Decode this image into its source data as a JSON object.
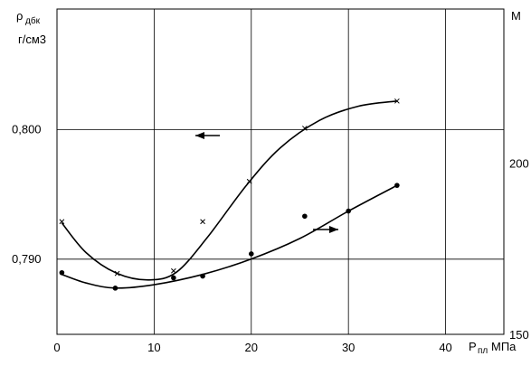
{
  "chart_data": {
    "type": "line",
    "title": "",
    "x_axis": {
      "label_main": "P",
      "label_sub": "пл",
      "unit": "МПа",
      "range": [
        0,
        46
      ],
      "ticks": [
        0,
        10,
        20,
        30,
        40
      ],
      "tick_labels": [
        "0",
        "10",
        "20",
        "30",
        "40"
      ]
    },
    "y_left": {
      "label_main": "ρ",
      "label_sub": "дбк",
      "unit": "г/см3",
      "range": [
        0.7842,
        0.8093
      ],
      "tick_values": [
        0.8,
        0.79
      ],
      "tick_labels": [
        "0,800",
        "0,790"
      ]
    },
    "y_right": {
      "label": "M",
      "range": [
        150,
        245
      ],
      "tick_values": [
        200,
        150
      ],
      "tick_labels": [
        "200",
        "150"
      ]
    },
    "grid": true,
    "series": [
      {
        "axis": "left",
        "marker": "x",
        "arrow": "left",
        "points": [
          [
            0.5,
            0.7929
          ],
          [
            6.2,
            0.7889
          ],
          [
            12.0,
            0.7891
          ],
          [
            15.0,
            0.7929
          ],
          [
            19.8,
            0.796
          ],
          [
            25.5,
            0.8001
          ],
          [
            35.0,
            0.8022
          ]
        ],
        "curve": [
          [
            0.5,
            0.7928
          ],
          [
            3,
            0.7905
          ],
          [
            6.2,
            0.7889
          ],
          [
            9.5,
            0.7884
          ],
          [
            12.3,
            0.789
          ],
          [
            15.5,
            0.7917
          ],
          [
            19.5,
            0.7957
          ],
          [
            23,
            0.7986
          ],
          [
            27,
            0.8007
          ],
          [
            31,
            0.8018
          ],
          [
            35,
            0.8022
          ]
        ]
      },
      {
        "axis": "right",
        "marker": "dot",
        "arrow": "right",
        "points": [
          [
            0.5,
            168
          ],
          [
            6.0,
            163.5
          ],
          [
            12.0,
            166.5
          ],
          [
            15.0,
            167
          ],
          [
            20.0,
            173.5
          ],
          [
            25.5,
            184.5
          ],
          [
            30.0,
            186
          ],
          [
            35.0,
            193.5
          ]
        ],
        "curve": [
          [
            0.5,
            167.5
          ],
          [
            3,
            165
          ],
          [
            6.0,
            163.5
          ],
          [
            10,
            164.5
          ],
          [
            15,
            167.5
          ],
          [
            20,
            172
          ],
          [
            25,
            178
          ],
          [
            30,
            186
          ],
          [
            35,
            193.5
          ]
        ]
      }
    ]
  }
}
